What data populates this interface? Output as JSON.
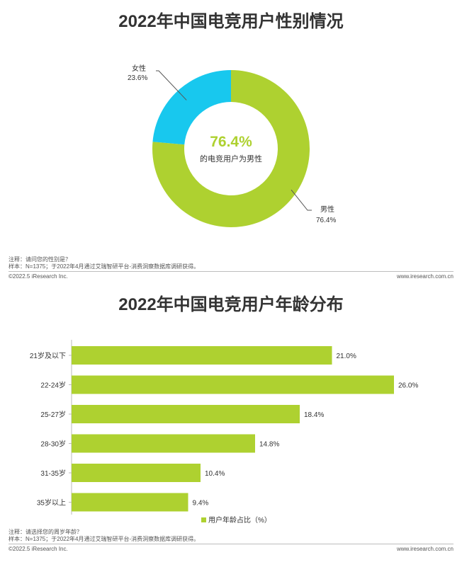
{
  "colors": {
    "male": "#aed130",
    "female": "#18c8ee",
    "bar": "#aed130",
    "text": "#333333",
    "center": "#aed130"
  },
  "pie_chart": {
    "title": "2022年中国电竞用户性别情况",
    "center_value": "76.4%",
    "center_label": "的电竞用户为男性",
    "note_line1": "注释：请问您的性别是？",
    "note_line2": "样本：N=1375；于2022年4月通过艾瑞智研平台-消费洞察数据库调研获得。",
    "footer_left": "©2022.5 iResearch Inc.",
    "footer_right": "www.iresearch.com.cn"
  },
  "bar_chart": {
    "title": "2022年中国电竞用户年龄分布",
    "legend": "用户年龄占比（%）",
    "note_line1": "注释：请选择您的周岁年龄？",
    "note_line2": "样本：N=1375；于2022年4月通过艾瑞智研平台-消费洞察数据库调研获得。",
    "footer_left": "©2022.5 iResearch Inc.",
    "footer_right": "www.iresearch.com.cn"
  },
  "chart_data": [
    {
      "type": "pie",
      "title": "2022年中国电竞用户性别情况",
      "categories": [
        "男性",
        "女性"
      ],
      "values": [
        76.4,
        23.6
      ],
      "labels": [
        "76.4%",
        "23.6%"
      ],
      "donut": true
    },
    {
      "type": "bar",
      "orientation": "horizontal",
      "title": "2022年中国电竞用户年龄分布",
      "categories": [
        "21岁及以下",
        "22-24岁",
        "25-27岁",
        "28-30岁",
        "31-35岁",
        "35岁以上"
      ],
      "series": [
        {
          "name": "用户年龄占比（%）",
          "values": [
            21.0,
            26.0,
            18.4,
            14.8,
            10.4,
            9.4
          ]
        }
      ],
      "labels": [
        "21.0%",
        "26.0%",
        "18.4%",
        "14.8%",
        "10.4%",
        "9.4%"
      ],
      "legend_position": "bottom"
    }
  ]
}
